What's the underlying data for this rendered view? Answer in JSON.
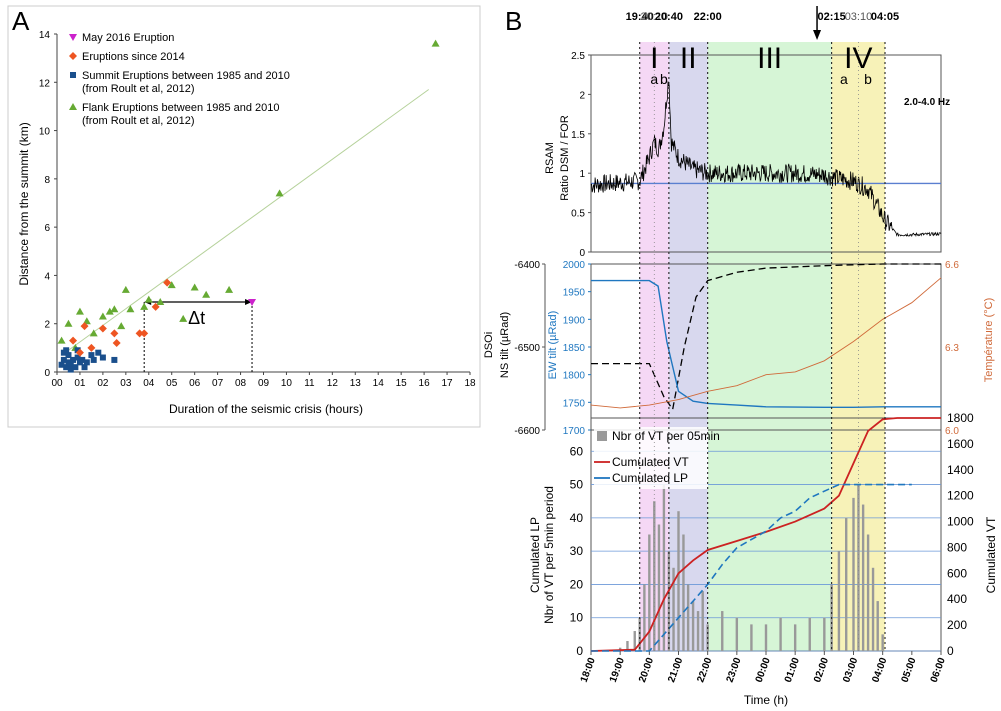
{
  "panels": {
    "a_letter": "A",
    "b_letter": "B"
  },
  "chart_data": [
    {
      "type": "scatter",
      "panel": "A",
      "xlabel": "Duration of the seismic crisis (hours)",
      "ylabel": "Distance from the summit (km)",
      "xlim": [
        0,
        18
      ],
      "ylim": [
        0,
        14
      ],
      "xticks": [
        "00",
        "01",
        "02",
        "03",
        "04",
        "05",
        "06",
        "07",
        "08",
        "09",
        "10",
        "11",
        "12",
        "13",
        "14",
        "15",
        "16",
        "17",
        "18"
      ],
      "yticks": [
        "0",
        "2",
        "4",
        "6",
        "8",
        "10",
        "12",
        "14"
      ],
      "grid": false,
      "legend_position": "top-left",
      "delta_label": "Δt",
      "delta_t": {
        "from_x": 3.8,
        "to_x": 8.5,
        "y": 2.9
      },
      "fit_line": {
        "color": "#b5d19a",
        "points": [
          [
            0.5,
            0.9
          ],
          [
            16.2,
            11.7
          ]
        ]
      },
      "series": [
        {
          "name": "May 2016 Eruption",
          "marker": "triangle-down",
          "color": "#cc22cc",
          "points": [
            [
              8.5,
              2.9
            ]
          ]
        },
        {
          "name": "Eruptions since 2014",
          "marker": "diamond",
          "color": "#ee5522",
          "points": [
            [
              0.7,
              1.3
            ],
            [
              1.0,
              0.8
            ],
            [
              1.2,
              1.9
            ],
            [
              1.5,
              1.0
            ],
            [
              2.0,
              1.8
            ],
            [
              2.5,
              1.6
            ],
            [
              2.6,
              1.2
            ],
            [
              3.6,
              1.6
            ],
            [
              3.8,
              1.6
            ],
            [
              4.3,
              2.7
            ],
            [
              4.8,
              3.7
            ]
          ]
        },
        {
          "name": "Summit Eruptions between 1985 and 2010",
          "name2": "(from Roult et al, 2012)",
          "marker": "square",
          "color": "#1a4f8c",
          "points": [
            [
              0.2,
              0.3
            ],
            [
              0.3,
              0.5
            ],
            [
              0.3,
              0.8
            ],
            [
              0.4,
              0.2
            ],
            [
              0.5,
              0.4
            ],
            [
              0.5,
              0.7
            ],
            [
              0.6,
              0.3
            ],
            [
              0.7,
              0.5
            ],
            [
              0.8,
              0.2
            ],
            [
              0.9,
              0.6
            ],
            [
              1.0,
              0.4
            ],
            [
              1.1,
              0.5
            ],
            [
              1.3,
              0.4
            ],
            [
              1.5,
              0.7
            ],
            [
              1.8,
              0.8
            ],
            [
              2.0,
              0.6
            ],
            [
              0.4,
              0.9
            ],
            [
              2.5,
              0.5
            ],
            [
              1.2,
              0.2
            ],
            [
              0.6,
              0.1
            ],
            [
              0.9,
              0.9
            ],
            [
              1.6,
              0.5
            ]
          ]
        },
        {
          "name": "Flank Eruptions between 1985 and 2010",
          "name2": "(from Roult et al, 2012)",
          "marker": "triangle-up",
          "color": "#66aa33",
          "points": [
            [
              0.2,
              1.3
            ],
            [
              0.5,
              2.0
            ],
            [
              1.0,
              2.5
            ],
            [
              1.3,
              2.1
            ],
            [
              1.6,
              1.6
            ],
            [
              2.0,
              2.3
            ],
            [
              2.3,
              2.5
            ],
            [
              2.5,
              2.6
            ],
            [
              3.0,
              3.4
            ],
            [
              3.2,
              2.6
            ],
            [
              3.8,
              2.7
            ],
            [
              4.0,
              3.0
            ],
            [
              4.5,
              2.9
            ],
            [
              5.0,
              3.6
            ],
            [
              5.5,
              2.2
            ],
            [
              6.0,
              3.5
            ],
            [
              6.5,
              3.2
            ],
            [
              7.5,
              3.4
            ],
            [
              9.7,
              7.4
            ],
            [
              16.5,
              13.6
            ],
            [
              0.8,
              1.0
            ],
            [
              2.8,
              1.9
            ]
          ]
        }
      ]
    },
    {
      "type": "line",
      "panel": "B-RSAM",
      "ylabel_line1": "RSAM",
      "ylabel_line2": "Ratio DSM / FOR",
      "freq_label": "2.0-4.0 Hz",
      "ylim": [
        0,
        2.5
      ],
      "yticks": [
        "0",
        "0.5",
        "1",
        "1.5",
        "2",
        "2.5"
      ],
      "reference_level": 0.87,
      "series": [
        {
          "name": "RSAM ratio",
          "color": "#000000",
          "x": [
            18,
            19,
            19.67,
            20,
            20.17,
            20.33,
            20.5,
            20.67,
            20.75,
            21,
            21.5,
            22,
            23,
            0,
            1,
            2,
            2.25,
            3,
            3.5,
            4.08,
            4.5,
            5,
            6
          ],
          "y": [
            0.85,
            0.88,
            0.9,
            1.2,
            1.4,
            1.3,
            1.6,
            2.25,
            1.4,
            1.2,
            1.05,
            1.0,
            1.0,
            1.0,
            1.0,
            0.98,
            0.95,
            0.9,
            0.8,
            0.4,
            0.22,
            0.22,
            0.23
          ]
        }
      ]
    },
    {
      "type": "line",
      "panel": "B-tilt",
      "left_axis_title": "DSOi",
      "left_axis_label": "NS tilt (µRad)",
      "left_ticks": [
        "-6400",
        "-6500",
        "-6600"
      ],
      "mid_axis_label": "EW tilt (µRad)",
      "mid_ticks": [
        "2000",
        "1950",
        "1900",
        "1850",
        "1800",
        "1750",
        "1700"
      ],
      "right_axis_label": "Température (°C)",
      "right_ticks": [
        "6.6",
        "6.3",
        "6.0"
      ],
      "series": [
        {
          "name": "NS tilt",
          "color": "#000000",
          "dash": true,
          "x": [
            18,
            20,
            20.5,
            20.8,
            21.2,
            21.6,
            22,
            23,
            0,
            2,
            3,
            4,
            6
          ],
          "y": [
            -6520,
            -6520,
            -6560,
            -6575,
            -6500,
            -6440,
            -6420,
            -6410,
            -6405,
            -6402,
            -6401,
            -6400,
            -6400
          ]
        },
        {
          "name": "EW tilt",
          "color": "#1f77c0",
          "x": [
            18,
            20,
            20.3,
            20.6,
            21,
            21.5,
            22,
            23,
            0,
            2,
            3,
            4,
            6
          ],
          "y": [
            1970,
            1970,
            1960,
            1860,
            1770,
            1752,
            1748,
            1745,
            1742,
            1741,
            1741,
            1742,
            1742
          ]
        },
        {
          "name": "Temperature",
          "color": "#d06a3a",
          "x": [
            18,
            19,
            20,
            21,
            22,
            23,
            0,
            1,
            2,
            3,
            4,
            5,
            6
          ],
          "y": [
            6.09,
            6.08,
            6.09,
            6.11,
            6.14,
            6.16,
            6.2,
            6.21,
            6.25,
            6.32,
            6.4,
            6.46,
            6.55
          ]
        }
      ]
    },
    {
      "type": "bar",
      "panel": "B-counts",
      "xlabel": "Time (h)",
      "left_axis_label_line1": "Cumulated LP",
      "left_axis_label_line2": "Nbr of VT per 5min period",
      "right_axis_label": "Cumulated VT",
      "left_ticks": [
        "0",
        "10",
        "20",
        "30",
        "40",
        "50",
        "60"
      ],
      "right_ticks": [
        "0",
        "200",
        "400",
        "600",
        "800",
        "1000",
        "1200",
        "1400",
        "1600",
        "1800"
      ],
      "ylim_left": [
        0,
        70
      ],
      "ylim_right": [
        0,
        1800
      ],
      "xticks": [
        "18:00",
        "19:00",
        "20:00",
        "21:00",
        "22:00",
        "23:00",
        "00:00",
        "01:00",
        "02:00",
        "03:00",
        "04:00",
        "05:00",
        "06:00"
      ],
      "legend_position": "top-left",
      "series": [
        {
          "name": "Nbr of VT per 05min",
          "color": "#999999",
          "kind": "bar",
          "x": [
            19.0,
            19.25,
            19.5,
            19.67,
            19.83,
            20.0,
            20.17,
            20.33,
            20.5,
            20.67,
            20.83,
            21.0,
            21.17,
            21.33,
            21.5,
            21.67,
            21.83,
            22.0,
            22.5,
            23.0,
            23.5,
            0.0,
            0.5,
            1.0,
            1.5,
            2.0,
            2.25,
            2.5,
            2.75,
            3.0,
            3.17,
            3.33,
            3.5,
            3.67,
            3.83,
            4.0
          ],
          "y": [
            1,
            3,
            6,
            10,
            20,
            35,
            45,
            38,
            50,
            30,
            25,
            42,
            35,
            20,
            15,
            12,
            18,
            8,
            12,
            10,
            8,
            8,
            10,
            8,
            10,
            10,
            20,
            30,
            40,
            46,
            50,
            44,
            35,
            25,
            15,
            5
          ]
        },
        {
          "name": "Cumulated VT",
          "color": "#cc2222",
          "kind": "line",
          "x": [
            18,
            19.5,
            20,
            20.5,
            21,
            21.5,
            22,
            23,
            0,
            1,
            2,
            2.5,
            3,
            3.5,
            4,
            4.5,
            6
          ],
          "y": [
            0,
            10,
            150,
            400,
            600,
            700,
            780,
            850,
            920,
            1000,
            1100,
            1200,
            1450,
            1700,
            1790,
            1800,
            1800
          ]
        },
        {
          "name": "Cumulated LP",
          "color": "#1f77c0",
          "kind": "line",
          "dash": true,
          "x": [
            18,
            20,
            20.5,
            21,
            21.5,
            22,
            22.5,
            23,
            0,
            0.5,
            1,
            1.5,
            2,
            2.5,
            3,
            4,
            5
          ],
          "y": [
            0,
            0,
            5,
            10,
            15,
            20,
            26,
            31,
            36,
            40,
            42,
            46,
            48,
            50,
            50,
            50,
            50
          ]
        }
      ]
    },
    {
      "type": "timeline",
      "panel": "B-phases",
      "phases": [
        {
          "label": "I",
          "start": 19.67,
          "end": 20.67,
          "color": "#f5d8f5"
        },
        {
          "label": "II",
          "start": 20.67,
          "end": 22.0,
          "color": "#d8d8ee"
        },
        {
          "label": "III",
          "start": 22.0,
          "end": 26.25,
          "color": "#d6f5d6"
        },
        {
          "label": "IV",
          "start": 26.25,
          "end": 28.08,
          "color": "#f7f2b8"
        }
      ],
      "sub_labels": [
        {
          "label": "a",
          "x": 20.17
        },
        {
          "label": "b",
          "x": 20.5
        },
        {
          "label": "a",
          "x": 26.67
        },
        {
          "label": "b",
          "x": 27.5
        }
      ],
      "time_markers": [
        {
          "label": "19:40",
          "x": 19.67,
          "bold": true
        },
        {
          "label": "20:10",
          "x": 20.17,
          "bold": false
        },
        {
          "label": "20:40",
          "x": 20.67,
          "bold": true
        },
        {
          "label": "22:00",
          "x": 22.0,
          "bold": true
        },
        {
          "label": "02:15",
          "x": 26.25,
          "bold": true
        },
        {
          "label": "03:10",
          "x": 27.17,
          "bold": false
        },
        {
          "label": "04:05",
          "x": 28.08,
          "bold": true
        }
      ],
      "arrow_at": 25.75
    }
  ]
}
